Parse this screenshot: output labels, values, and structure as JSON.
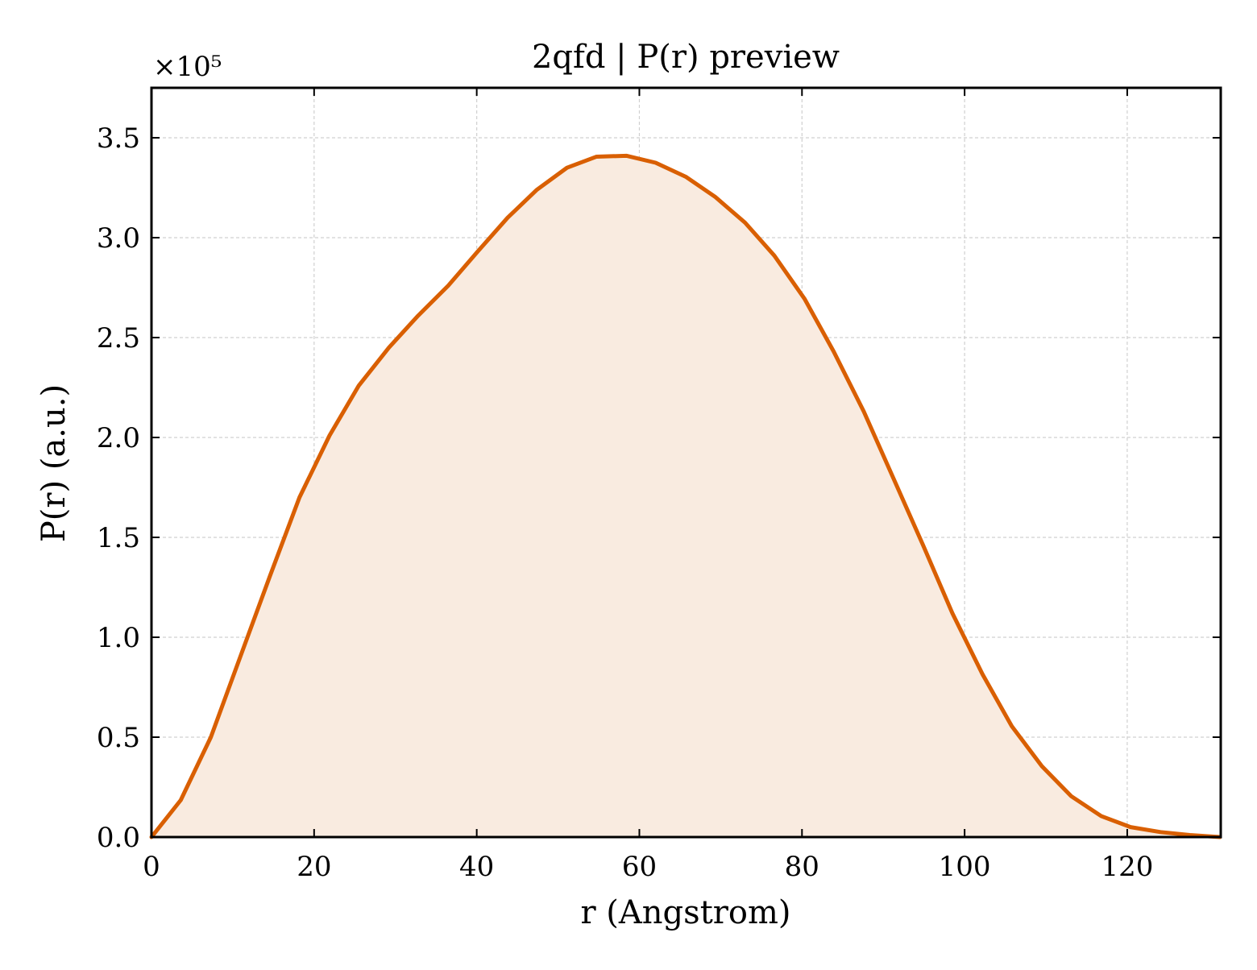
{
  "colors": {
    "line": "#d95f02",
    "fill": "#f9ebe0",
    "grid": "#d0d0d0",
    "axis": "#000000",
    "background": "#ffffff"
  },
  "chart_data": {
    "type": "area",
    "title": "2qfd | P(r) preview",
    "xlabel": "r (Angstrom)",
    "ylabel": "P(r) (a.u.)",
    "y_multiplier_label": "×10⁵",
    "y_scale": 100000,
    "xlim": [
      0,
      131.5
    ],
    "ylim": [
      0,
      375000
    ],
    "grid": true,
    "legend": "none",
    "x_ticks": [
      0,
      20,
      40,
      60,
      80,
      100,
      120
    ],
    "x_tick_labels": [
      "0",
      "20",
      "40",
      "60",
      "80",
      "100",
      "120"
    ],
    "y_ticks": [
      0,
      50000,
      100000,
      150000,
      200000,
      250000,
      300000,
      350000
    ],
    "y_tick_labels": [
      "0.0",
      "0.5",
      "1.0",
      "1.5",
      "2.0",
      "2.5",
      "3.0",
      "3.5"
    ],
    "series": [
      {
        "x": [
          0,
          3.6,
          7.3,
          10.9,
          14.6,
          18.2,
          21.9,
          25.5,
          29.2,
          32.8,
          36.5,
          40.1,
          43.8,
          47.4,
          51.1,
          54.7,
          58.4,
          62.0,
          65.7,
          69.3,
          73.0,
          76.6,
          80.3,
          83.9,
          87.6,
          91.2,
          94.9,
          98.5,
          102.2,
          105.8,
          109.5,
          113.1,
          116.8,
          120.4,
          124.1,
          127.7,
          131.4
        ],
        "y": [
          0,
          18500,
          50000,
          90000,
          131000,
          170000,
          201000,
          226000,
          245000,
          261000,
          276000,
          293000,
          310000,
          324000,
          335000,
          340500,
          341000,
          337500,
          330500,
          320500,
          307500,
          291000,
          269500,
          243000,
          213000,
          180000,
          146000,
          112000,
          81500,
          55500,
          35500,
          20500,
          10500,
          5000,
          2500,
          1000,
          0
        ]
      }
    ]
  }
}
